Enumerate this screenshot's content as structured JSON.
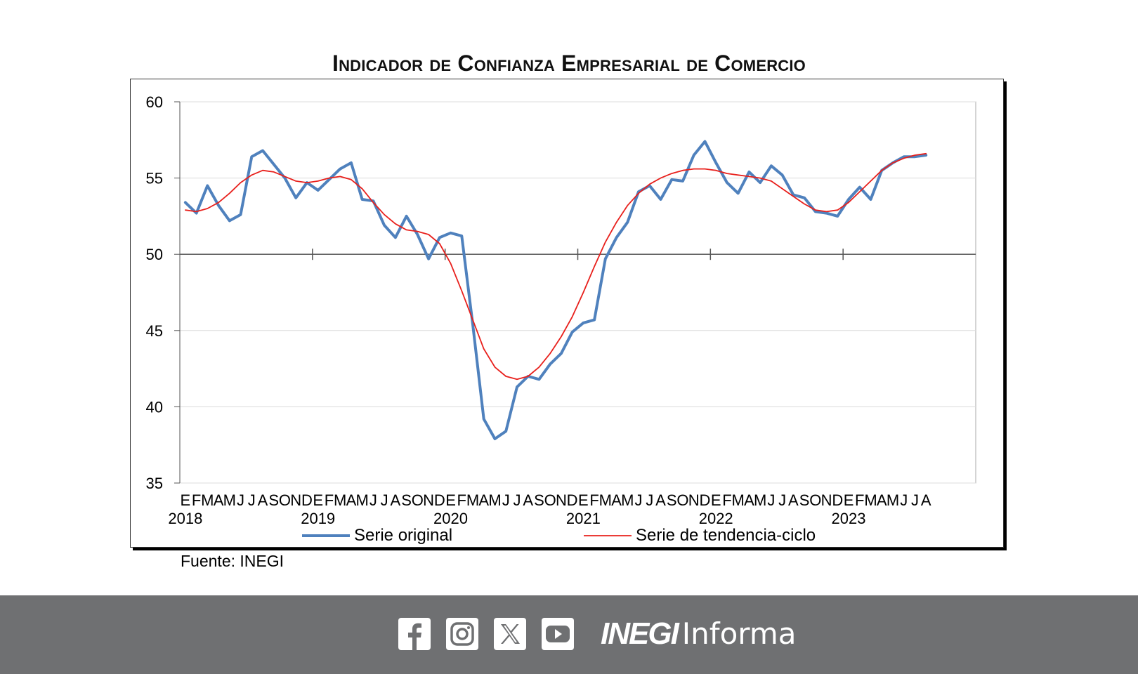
{
  "chart_data": {
    "type": "line",
    "title": "Indicador de Confianza Empresarial de Comercio",
    "source": "Fuente: INEGI",
    "ylim": [
      35,
      60
    ],
    "yticks": [
      "35",
      "40",
      "45",
      "50",
      "55",
      "60"
    ],
    "reference_line": 50,
    "grid": "horizontal",
    "legend_position": "bottom",
    "month_labels": [
      "E",
      "F",
      "M",
      "A",
      "M",
      "J",
      "J",
      "A",
      "S",
      "O",
      "N",
      "D"
    ],
    "years": [
      "2018",
      "2019",
      "2020",
      "2021",
      "2022",
      "2023"
    ],
    "x": [
      "2018-01",
      "2018-02",
      "2018-03",
      "2018-04",
      "2018-05",
      "2018-06",
      "2018-07",
      "2018-08",
      "2018-09",
      "2018-10",
      "2018-11",
      "2018-12",
      "2019-01",
      "2019-02",
      "2019-03",
      "2019-04",
      "2019-05",
      "2019-06",
      "2019-07",
      "2019-08",
      "2019-09",
      "2019-10",
      "2019-11",
      "2019-12",
      "2020-01",
      "2020-02",
      "2020-03",
      "2020-04",
      "2020-05",
      "2020-06",
      "2020-07",
      "2020-08",
      "2020-09",
      "2020-10",
      "2020-11",
      "2020-12",
      "2021-01",
      "2021-02",
      "2021-03",
      "2021-04",
      "2021-05",
      "2021-06",
      "2021-07",
      "2021-08",
      "2021-09",
      "2021-10",
      "2021-11",
      "2021-12",
      "2022-01",
      "2022-02",
      "2022-03",
      "2022-04",
      "2022-05",
      "2022-06",
      "2022-07",
      "2022-08",
      "2022-09",
      "2022-10",
      "2022-11",
      "2022-12",
      "2023-01",
      "2023-02",
      "2023-03",
      "2023-04",
      "2023-05",
      "2023-06",
      "2023-07",
      "2023-08"
    ],
    "series": [
      {
        "name": "Serie original",
        "color": "#4f81bd",
        "values": [
          53.4,
          52.7,
          54.5,
          53.2,
          52.2,
          52.6,
          56.4,
          56.8,
          55.9,
          55.0,
          53.7,
          54.7,
          54.2,
          54.9,
          55.6,
          56.0,
          53.6,
          53.5,
          51.9,
          51.1,
          52.5,
          51.3,
          49.7,
          51.1,
          51.4,
          51.2,
          45.4,
          39.2,
          37.9,
          38.4,
          41.3,
          42.0,
          41.8,
          42.8,
          43.5,
          44.9,
          45.5,
          45.7,
          49.7,
          51.1,
          52.1,
          54.1,
          54.5,
          53.6,
          54.9,
          54.8,
          56.5,
          57.4,
          56.0,
          54.7,
          54.0,
          55.4,
          54.7,
          55.8,
          55.2,
          53.9,
          53.7,
          52.8,
          52.7,
          52.5,
          53.6,
          54.4,
          53.6,
          55.5,
          56.0,
          56.4,
          56.4,
          56.5
        ]
      },
      {
        "name": "Serie de tendencia-ciclo",
        "color": "#e8201c",
        "values": [
          52.9,
          52.8,
          53.0,
          53.4,
          54.0,
          54.7,
          55.2,
          55.5,
          55.4,
          55.1,
          54.8,
          54.7,
          54.8,
          55.0,
          55.1,
          54.9,
          54.3,
          53.4,
          52.6,
          52.0,
          51.6,
          51.5,
          51.3,
          50.7,
          49.4,
          47.6,
          45.7,
          43.8,
          42.6,
          42.0,
          41.8,
          42.0,
          42.6,
          43.5,
          44.6,
          45.9,
          47.5,
          49.2,
          50.8,
          52.1,
          53.2,
          54.0,
          54.6,
          55.0,
          55.3,
          55.5,
          55.6,
          55.6,
          55.5,
          55.3,
          55.2,
          55.1,
          55.0,
          54.8,
          54.3,
          53.8,
          53.3,
          52.9,
          52.8,
          52.9,
          53.4,
          54.1,
          54.8,
          55.5,
          56.0,
          56.3,
          56.5,
          56.6
        ]
      }
    ]
  },
  "footer": {
    "brand_name": "INEGI",
    "brand_suffix": "Informa",
    "icons": [
      "facebook-icon",
      "instagram-icon",
      "x-icon",
      "youtube-icon"
    ]
  }
}
